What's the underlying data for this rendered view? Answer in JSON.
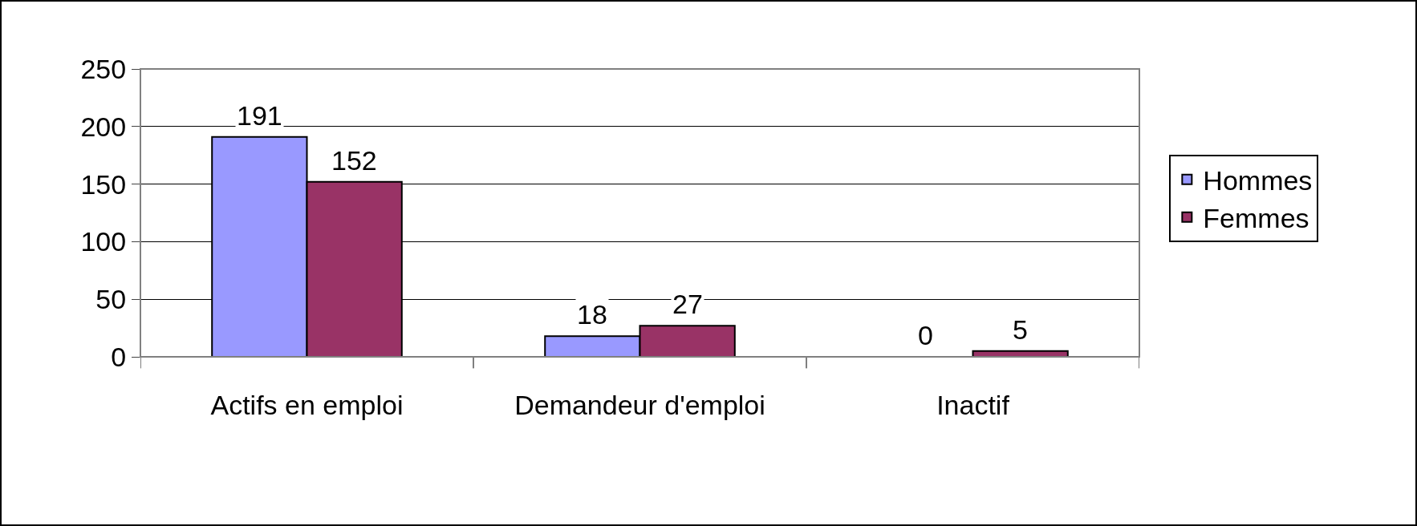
{
  "chart_data": {
    "type": "bar",
    "categories": [
      "Actifs en emploi",
      "Demandeur d'emploi",
      "Inactif"
    ],
    "series": [
      {
        "name": "Hommes",
        "color": "#9999ff",
        "values": [
          191,
          18,
          0
        ]
      },
      {
        "name": "Femmes",
        "color": "#993366",
        "values": [
          152,
          27,
          5
        ]
      }
    ],
    "ylim": [
      0,
      250
    ],
    "yticks": [
      0,
      50,
      100,
      150,
      200,
      250
    ],
    "grid": "y",
    "legend": "right",
    "data_labels": true
  }
}
